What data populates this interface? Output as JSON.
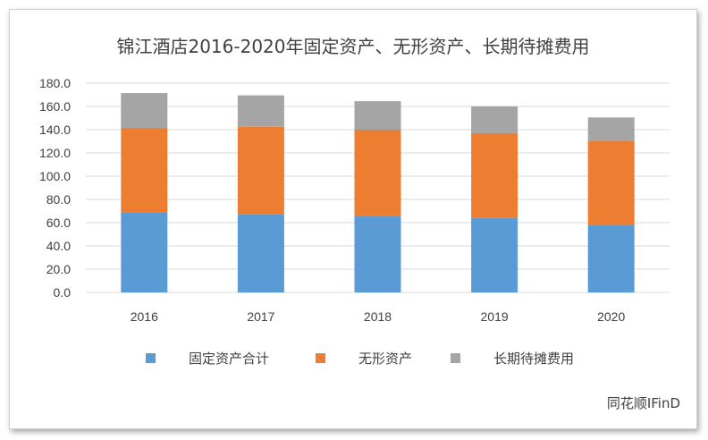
{
  "chart_data": {
    "type": "bar",
    "stacked": true,
    "title": "锦江酒店2016-2020年固定资产、无形资产、长期待摊费用",
    "categories": [
      "2016",
      "2017",
      "2018",
      "2019",
      "2020"
    ],
    "series": [
      {
        "name": "固定资产合计",
        "color": "#5b9bd5",
        "values": [
          68.5,
          67.5,
          65.5,
          64.0,
          58.0
        ]
      },
      {
        "name": "无形资产",
        "color": "#ed7d31",
        "values": [
          73.0,
          75.0,
          74.5,
          73.0,
          72.5
        ]
      },
      {
        "name": "长期待摊费用",
        "color": "#a5a5a5",
        "values": [
          30.0,
          27.0,
          24.5,
          23.0,
          20.0
        ]
      }
    ],
    "y_ticks": [
      "0.0",
      "20.0",
      "40.0",
      "60.0",
      "80.0",
      "100.0",
      "120.0",
      "140.0",
      "160.0",
      "180.0"
    ],
    "ylim": [
      0,
      180
    ],
    "grid": true,
    "legend_position": "bottom",
    "xlabel": "",
    "ylabel": ""
  },
  "source_label": "同花顺IFinD"
}
